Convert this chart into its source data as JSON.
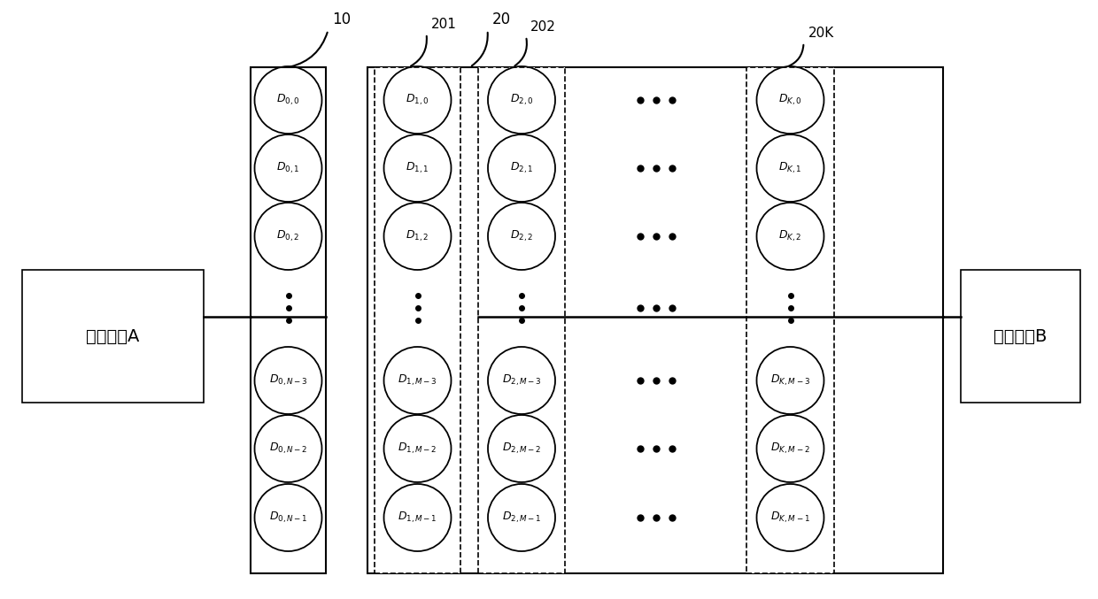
{
  "bg_color": "#ffffff",
  "fig_width": 12.4,
  "fig_height": 6.77,
  "comm_A_label": "通信系统A",
  "comm_B_label": "通信系统B",
  "label_10": "10",
  "label_20": "20",
  "label_201": "201",
  "label_202": "202",
  "label_20K": "20K",
  "col0_labels": [
    [
      "0",
      "0"
    ],
    [
      "0",
      "1"
    ],
    [
      "0",
      "2"
    ],
    [
      "0",
      "N-3"
    ],
    [
      "0",
      "N-2"
    ],
    [
      "0",
      "N-1"
    ]
  ],
  "col1_labels": [
    [
      "1",
      "0"
    ],
    [
      "1",
      "1"
    ],
    [
      "1",
      "2"
    ],
    [
      "1",
      "M-3"
    ],
    [
      "1",
      "M-2"
    ],
    [
      "1",
      "M-1"
    ]
  ],
  "col2_labels": [
    [
      "2",
      "0"
    ],
    [
      "2",
      "1"
    ],
    [
      "2",
      "2"
    ],
    [
      "2",
      "M-3"
    ],
    [
      "2",
      "M-2"
    ],
    [
      "2",
      "M-1"
    ]
  ],
  "colK_labels": [
    [
      "K",
      "0"
    ],
    [
      "K",
      "1"
    ],
    [
      "K",
      "2"
    ],
    [
      "K",
      "M-3"
    ],
    [
      "K",
      "M-2"
    ],
    [
      "K",
      "M-1"
    ]
  ]
}
